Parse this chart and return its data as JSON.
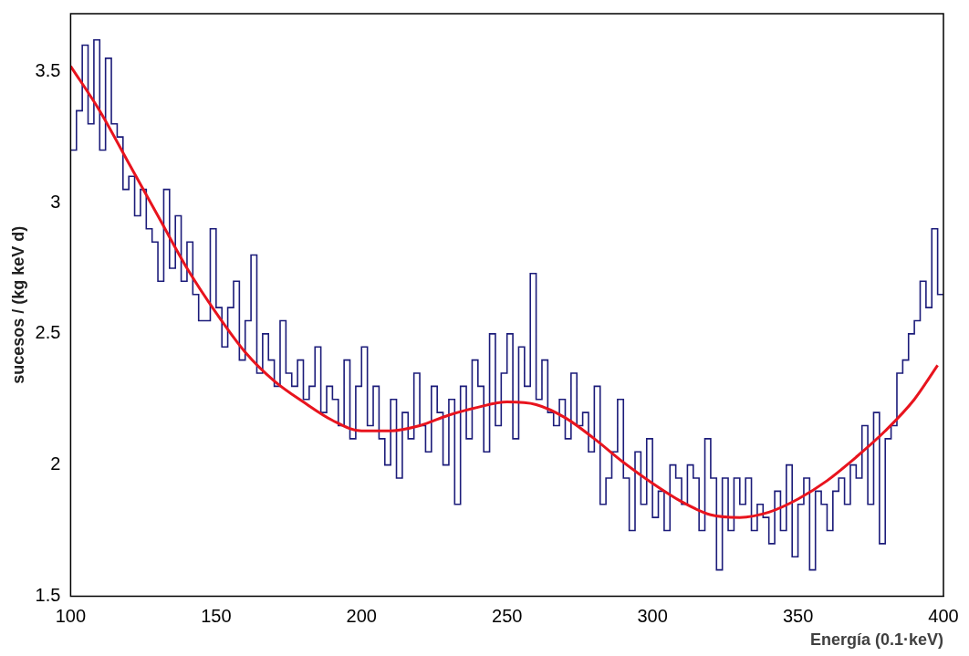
{
  "chart_data": {
    "type": "histogram",
    "xlabel": "Energía (0.1·keV)",
    "ylabel": "sucesos / (kg keV d)",
    "xlim": [
      100,
      400
    ],
    "xticks": [
      100,
      150,
      200,
      250,
      300,
      350,
      400
    ],
    "ylim": [
      1.5,
      3.72
    ],
    "yticks": [
      1.5,
      2,
      2.5,
      3,
      3.5
    ],
    "grid": false,
    "legend": false,
    "series": [
      {
        "type": "histogram",
        "color": "#1c1c7a",
        "bins": [
          100,
          102,
          104,
          106,
          108,
          110,
          112,
          114,
          116,
          118,
          120,
          122,
          124,
          126,
          128,
          130,
          132,
          134,
          136,
          138,
          140,
          142,
          144,
          146,
          148,
          150,
          152,
          154,
          156,
          158,
          160,
          162,
          164,
          166,
          168,
          170,
          172,
          174,
          176,
          178,
          180,
          182,
          184,
          186,
          188,
          190,
          192,
          194,
          196,
          198,
          200,
          202,
          204,
          206,
          208,
          210,
          212,
          214,
          216,
          218,
          220,
          222,
          224,
          226,
          228,
          230,
          232,
          234,
          236,
          238,
          240,
          242,
          244,
          246,
          248,
          250,
          252,
          254,
          256,
          258,
          260,
          262,
          264,
          266,
          268,
          270,
          272,
          274,
          276,
          278,
          280,
          282,
          284,
          286,
          288,
          290,
          292,
          294,
          296,
          298,
          300,
          302,
          304,
          306,
          308,
          310,
          312,
          314,
          316,
          318,
          320,
          322,
          324,
          326,
          328,
          330,
          332,
          334,
          336,
          338,
          340,
          342,
          344,
          346,
          348,
          350,
          352,
          354,
          356,
          358,
          360,
          362,
          364,
          366,
          368,
          370,
          372,
          374,
          376,
          378,
          380,
          382,
          384,
          386,
          388,
          390,
          392,
          394,
          396,
          398,
          400
        ],
        "values": [
          3.2,
          3.35,
          3.6,
          3.3,
          3.62,
          3.2,
          3.55,
          3.3,
          3.25,
          3.05,
          3.1,
          2.95,
          3.05,
          2.9,
          2.85,
          2.7,
          3.05,
          2.75,
          2.95,
          2.7,
          2.85,
          2.65,
          2.55,
          2.55,
          2.9,
          2.6,
          2.45,
          2.6,
          2.7,
          2.4,
          2.55,
          2.8,
          2.35,
          2.5,
          2.4,
          2.3,
          2.55,
          2.35,
          2.3,
          2.4,
          2.25,
          2.3,
          2.45,
          2.2,
          2.3,
          2.25,
          2.15,
          2.4,
          2.1,
          2.3,
          2.45,
          2.15,
          2.3,
          2.1,
          2.0,
          2.25,
          1.95,
          2.2,
          2.1,
          2.35,
          2.15,
          2.05,
          2.3,
          2.2,
          2.0,
          2.25,
          1.85,
          2.3,
          2.1,
          2.4,
          2.3,
          2.05,
          2.5,
          2.15,
          2.35,
          2.5,
          2.1,
          2.45,
          2.3,
          2.73,
          2.25,
          2.4,
          2.2,
          2.15,
          2.25,
          2.1,
          2.35,
          2.15,
          2.2,
          2.05,
          2.3,
          1.85,
          1.95,
          2.05,
          2.25,
          1.95,
          1.75,
          2.05,
          1.85,
          2.1,
          1.8,
          1.9,
          1.75,
          2.0,
          1.95,
          1.85,
          2.0,
          1.95,
          1.75,
          2.1,
          1.95,
          1.6,
          1.95,
          1.75,
          1.95,
          1.85,
          1.95,
          1.75,
          1.85,
          1.8,
          1.7,
          1.9,
          1.75,
          2.0,
          1.65,
          1.85,
          1.95,
          1.6,
          1.9,
          1.85,
          1.75,
          1.9,
          1.95,
          1.85,
          2.0,
          1.95,
          2.15,
          1.85,
          2.2,
          1.7,
          2.1,
          2.15,
          2.35,
          2.4,
          2.5,
          2.55,
          2.7,
          2.6,
          2.9,
          2.65
        ]
      },
      {
        "type": "line",
        "color": "#e8141e",
        "x": [
          100,
          110,
          120,
          130,
          140,
          150,
          160,
          170,
          180,
          190,
          200,
          210,
          220,
          230,
          240,
          250,
          260,
          270,
          280,
          290,
          300,
          310,
          320,
          330,
          340,
          350,
          360,
          370,
          380,
          390,
          398
        ],
        "values": [
          3.52,
          3.35,
          3.15,
          2.95,
          2.75,
          2.58,
          2.43,
          2.32,
          2.24,
          2.17,
          2.13,
          2.13,
          2.15,
          2.19,
          2.22,
          2.24,
          2.23,
          2.18,
          2.1,
          2.01,
          1.93,
          1.86,
          1.81,
          1.8,
          1.82,
          1.87,
          1.94,
          2.03,
          2.13,
          2.25,
          2.38
        ]
      }
    ]
  }
}
